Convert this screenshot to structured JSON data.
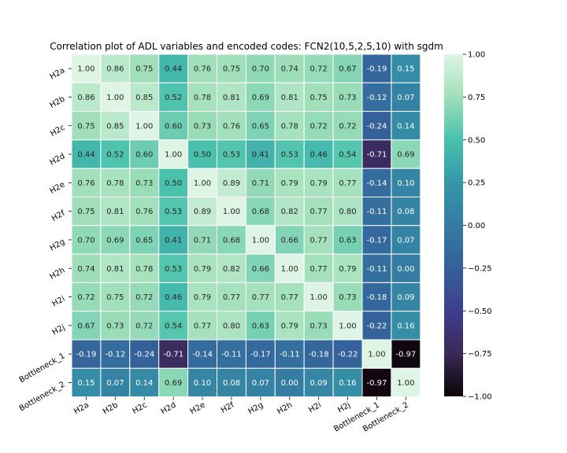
{
  "chart_data": {
    "type": "heatmap",
    "title": "Correlation plot of ADL variables and encoded codes: FCN2(10,5,2,5,10) with sgdm",
    "xlabel": "",
    "ylabel": "",
    "labels": [
      "H2a",
      "H2b",
      "H2c",
      "H2d",
      "H2e",
      "H2f",
      "H2g",
      "H2h",
      "H2i",
      "H2j",
      "Bottleneck_1",
      "Bottleneck_2"
    ],
    "values": [
      [
        1.0,
        0.86,
        0.75,
        0.44,
        0.76,
        0.75,
        0.7,
        0.74,
        0.72,
        0.67,
        -0.19,
        0.15
      ],
      [
        0.86,
        1.0,
        0.85,
        0.52,
        0.78,
        0.81,
        0.69,
        0.81,
        0.75,
        0.73,
        -0.12,
        0.07
      ],
      [
        0.75,
        0.85,
        1.0,
        0.6,
        0.73,
        0.76,
        0.65,
        0.78,
        0.72,
        0.72,
        -0.24,
        0.14
      ],
      [
        0.44,
        0.52,
        0.6,
        1.0,
        0.5,
        0.53,
        0.41,
        0.53,
        0.46,
        0.54,
        -0.71,
        0.69
      ],
      [
        0.76,
        0.78,
        0.73,
        0.5,
        1.0,
        0.89,
        0.71,
        0.79,
        0.79,
        0.77,
        -0.14,
        0.1
      ],
      [
        0.75,
        0.81,
        0.76,
        0.53,
        0.89,
        1.0,
        0.68,
        0.82,
        0.77,
        0.8,
        -0.11,
        0.08
      ],
      [
        0.7,
        0.69,
        0.65,
        0.41,
        0.71,
        0.68,
        1.0,
        0.66,
        0.77,
        0.63,
        -0.17,
        0.07
      ],
      [
        0.74,
        0.81,
        0.78,
        0.53,
        0.79,
        0.82,
        0.66,
        1.0,
        0.77,
        0.79,
        -0.11,
        0.0
      ],
      [
        0.72,
        0.75,
        0.72,
        0.46,
        0.79,
        0.77,
        0.77,
        0.77,
        1.0,
        0.73,
        -0.18,
        0.09
      ],
      [
        0.67,
        0.73,
        0.72,
        0.54,
        0.77,
        0.8,
        0.63,
        0.79,
        0.73,
        1.0,
        -0.22,
        0.16
      ],
      [
        -0.19,
        -0.12,
        -0.24,
        -0.71,
        -0.14,
        -0.11,
        -0.17,
        -0.11,
        -0.18,
        -0.22,
        1.0,
        -0.97
      ],
      [
        0.15,
        0.07,
        0.14,
        0.69,
        0.1,
        0.08,
        0.07,
        0.0,
        0.09,
        0.16,
        -0.97,
        1.0
      ]
    ],
    "value_format": "0.00",
    "colormap": "mako",
    "vmin": -1.0,
    "vmax": 1.0,
    "colorbar_ticks": [
      "1.00",
      "0.75",
      "0.50",
      "0.25",
      "0.00",
      "−0.25",
      "−0.50",
      "−0.75",
      "−1.00"
    ],
    "colorbar_tick_values": [
      1.0,
      0.75,
      0.5,
      0.25,
      0.0,
      -0.25,
      -0.5,
      -0.75,
      -1.0
    ],
    "grid_line_color": "#ffffff",
    "legend": "colorbar-right"
  }
}
